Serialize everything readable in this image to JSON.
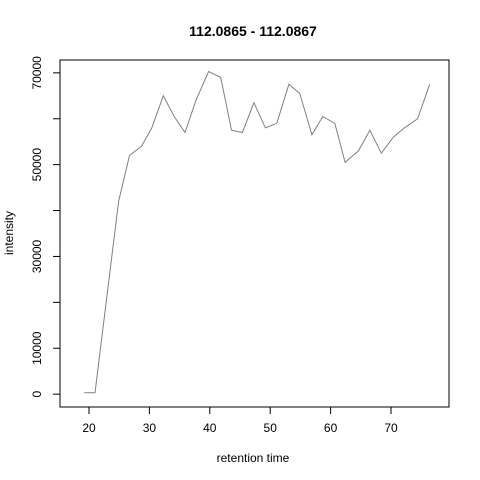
{
  "chart_data": {
    "type": "line",
    "title": "112.0865 - 112.0867",
    "xlabel": "retention time",
    "ylabel": "intensity",
    "xlim": [
      15.2,
      79.6
    ],
    "ylim": [
      -2800,
      72800
    ],
    "xticks": [
      20,
      30,
      40,
      50,
      60,
      70
    ],
    "yticks": [
      0,
      10000,
      30000,
      50000,
      70000
    ],
    "minor_yticks": [
      20000,
      40000,
      60000
    ],
    "grid": false,
    "legend": "none",
    "line_color": "#808080",
    "series": [
      {
        "x": [
          19.2,
          21.0,
          24.9,
          26.7,
          28.7,
          30.4,
          32.3,
          34.1,
          35.9,
          37.7,
          39.8,
          41.8,
          43.6,
          45.4,
          47.3,
          49.2,
          51.1,
          53.1,
          54.9,
          56.9,
          58.7,
          60.7,
          62.4,
          64.6,
          66.5,
          68.4,
          70.4,
          72.2,
          74.4,
          76.4
        ],
        "y": [
          300,
          300,
          42000,
          52000,
          54000,
          58000,
          65000,
          60500,
          57000,
          64000,
          70300,
          69000,
          57500,
          57000,
          63500,
          58000,
          59000,
          67500,
          65500,
          56500,
          60500,
          59000,
          50500,
          53000,
          57500,
          52500,
          56000,
          58000,
          60000,
          67500
        ]
      }
    ]
  }
}
